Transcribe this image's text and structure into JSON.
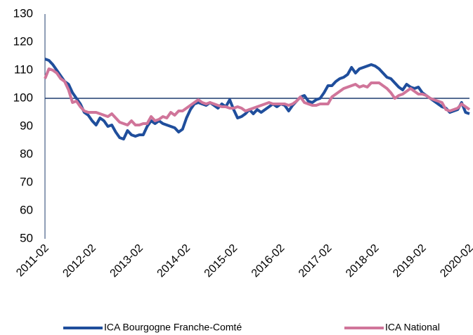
{
  "chart_data": {
    "type": "line",
    "categories": [
      "2011-02",
      null,
      null,
      null,
      null,
      null,
      null,
      null,
      null,
      null,
      null,
      null,
      "2012-02",
      null,
      null,
      null,
      null,
      null,
      null,
      null,
      null,
      null,
      null,
      null,
      "2013-02",
      null,
      null,
      null,
      null,
      null,
      null,
      null,
      null,
      null,
      null,
      null,
      "2014-02",
      null,
      null,
      null,
      null,
      null,
      null,
      null,
      null,
      null,
      null,
      null,
      "2015-02",
      null,
      null,
      null,
      null,
      null,
      null,
      null,
      null,
      null,
      null,
      null,
      "2016-02",
      null,
      null,
      null,
      null,
      null,
      null,
      null,
      null,
      null,
      null,
      null,
      "2017-02",
      null,
      null,
      null,
      null,
      null,
      null,
      null,
      null,
      null,
      null,
      null,
      "2018-02",
      null,
      null,
      null,
      null,
      null,
      null,
      null,
      null,
      null,
      null,
      null,
      "2019-02",
      null,
      null,
      null,
      null,
      null,
      null,
      null,
      null,
      null,
      null,
      null,
      "2020-02"
    ],
    "series": [
      {
        "name": "ICA Bourgogne Franche-Comté",
        "color": "#1f4e9c",
        "values": [
          114,
          113.5,
          112,
          110,
          108,
          106,
          105,
          102,
          100,
          98,
          95,
          94,
          92,
          90.5,
          93,
          92,
          90,
          90.5,
          88,
          86,
          85.5,
          88.5,
          87,
          86.5,
          87,
          87,
          90,
          92,
          91,
          92,
          91,
          90.5,
          90,
          89.5,
          88,
          89,
          93,
          96,
          98,
          98.5,
          98,
          97.5,
          98.5,
          97.5,
          96.5,
          98,
          97,
          99.5,
          96,
          93,
          93.5,
          94.5,
          96,
          94.5,
          96,
          95,
          96,
          97,
          98,
          97,
          98,
          97.5,
          95.5,
          97.5,
          99,
          100.5,
          101,
          99,
          98.5,
          99.5,
          100,
          102,
          104.5,
          104.5,
          106,
          107,
          107.5,
          108.5,
          111,
          109,
          110.5,
          111,
          111.5,
          112,
          111.5,
          110.5,
          109,
          107.5,
          107,
          105.5,
          104,
          103,
          105,
          104,
          103.5,
          104,
          102,
          101,
          100,
          99,
          98,
          97,
          96.5,
          95,
          95.5,
          96,
          98.5,
          95,
          94.5
        ]
      },
      {
        "name": "ICA National",
        "color": "#d0759a",
        "values": [
          107,
          110.5,
          110,
          109,
          107,
          106,
          103,
          98.5,
          99,
          97,
          95.5,
          95,
          95,
          95,
          94.5,
          94,
          93.5,
          94.5,
          93,
          91.5,
          91,
          90.5,
          92,
          90.5,
          90.5,
          91,
          91,
          93.5,
          92,
          92.5,
          93.5,
          93,
          95,
          94,
          95.5,
          95.5,
          96.5,
          97.5,
          98.5,
          99.5,
          98.5,
          98,
          98.5,
          98,
          97.5,
          97,
          97,
          96.5,
          96.5,
          97,
          96.5,
          95.5,
          96,
          96.5,
          97,
          97.5,
          98,
          98.5,
          98,
          98,
          98,
          98,
          97.5,
          98,
          99,
          100.5,
          98.5,
          98,
          97.5,
          97.5,
          98,
          98,
          98,
          100.5,
          101.5,
          102.5,
          103.5,
          104,
          104.5,
          105,
          104,
          104.5,
          104,
          105.5,
          105.5,
          105.5,
          104.5,
          103.5,
          102,
          100,
          101,
          101.5,
          102.5,
          103.5,
          102.5,
          101.5,
          101.5,
          101,
          100,
          99.5,
          99,
          98.5,
          96,
          95.5,
          96,
          96.5,
          98,
          97,
          96
        ]
      }
    ],
    "ylim": [
      50,
      130
    ],
    "yticks": [
      50,
      60,
      70,
      80,
      90,
      100,
      110,
      120,
      130
    ],
    "reference_line": 100,
    "reference_color": "#1f3c6e",
    "grid": false,
    "legend": "bottom"
  }
}
